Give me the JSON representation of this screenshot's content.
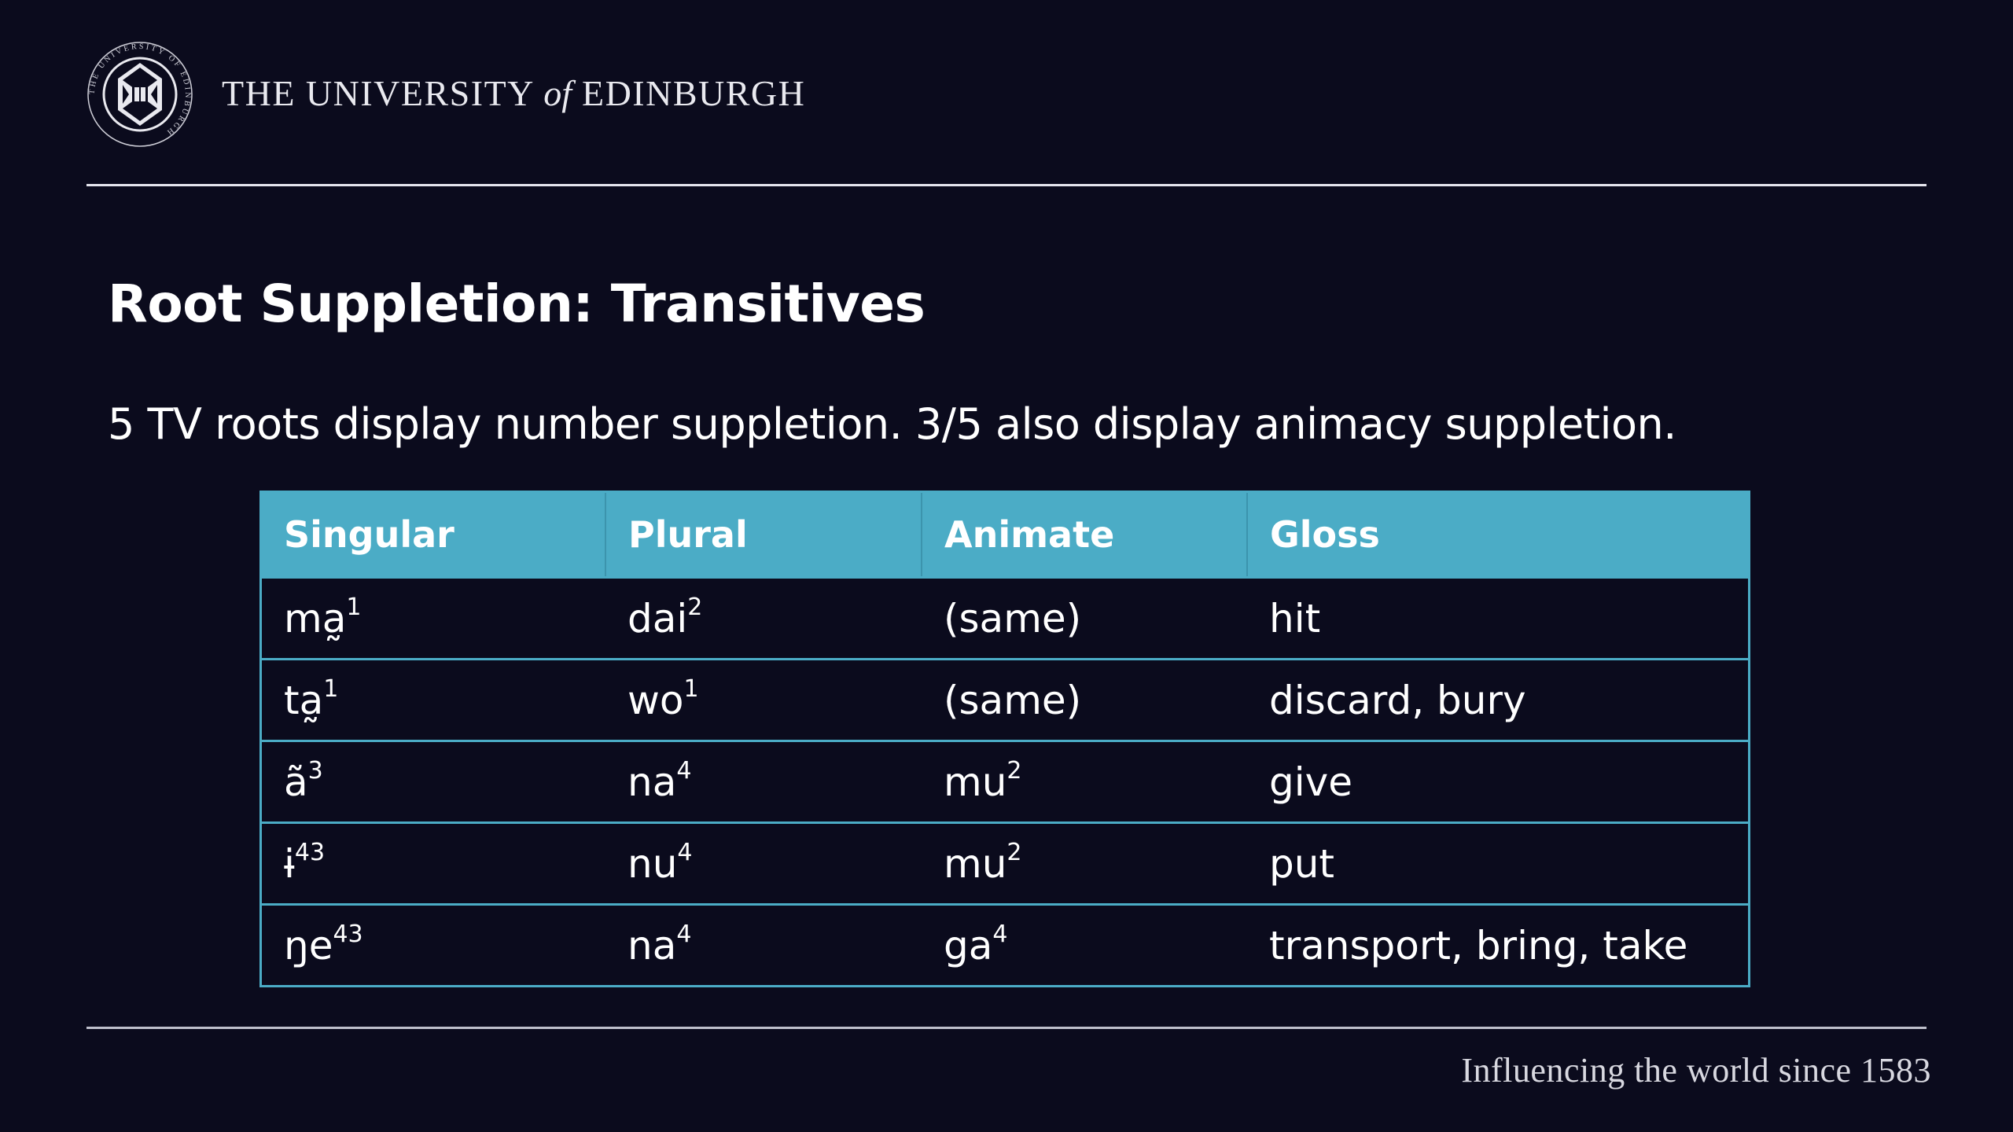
{
  "header": {
    "name_part1": "THE UNIVERSITY",
    "name_of": "of",
    "name_part2": "EDINBURGH",
    "crest_ring_text": "THE UNIVERSITY OF EDINBURGH"
  },
  "slide": {
    "title": "Root Suppletion: Transitives",
    "subtitle": "5 TV roots display number suppletion. 3/5 also display animacy suppletion."
  },
  "table": {
    "headers": [
      "Singular",
      "Plural",
      "Animate",
      "Gloss"
    ],
    "rows": [
      [
        {
          "base": "ma̰",
          "sup": "1"
        },
        {
          "base": "dai",
          "sup": "2"
        },
        {
          "base": "(same)",
          "sup": ""
        },
        {
          "base": "hit",
          "sup": ""
        }
      ],
      [
        {
          "base": "ta̰",
          "sup": "1"
        },
        {
          "base": "wo",
          "sup": "1"
        },
        {
          "base": "(same)",
          "sup": ""
        },
        {
          "base": "discard, bury",
          "sup": ""
        }
      ],
      [
        {
          "base": "ã",
          "sup": "3"
        },
        {
          "base": "na",
          "sup": "4"
        },
        {
          "base": "mu",
          "sup": "2"
        },
        {
          "base": "give",
          "sup": ""
        }
      ],
      [
        {
          "base": "ɨ",
          "sup": "43"
        },
        {
          "base": "nu",
          "sup": "4"
        },
        {
          "base": "mu",
          "sup": "2"
        },
        {
          "base": "put",
          "sup": ""
        }
      ],
      [
        {
          "base": "ŋe",
          "sup": "43"
        },
        {
          "base": "na",
          "sup": "4"
        },
        {
          "base": "ga",
          "sup": "4"
        },
        {
          "base": "transport, bring, take",
          "sup": ""
        }
      ]
    ]
  },
  "footer": {
    "tagline": "Influencing the world since 1583"
  },
  "colors": {
    "background": "#0b0b1d",
    "table_header": "#4bacc6",
    "text": "#ffffff"
  }
}
